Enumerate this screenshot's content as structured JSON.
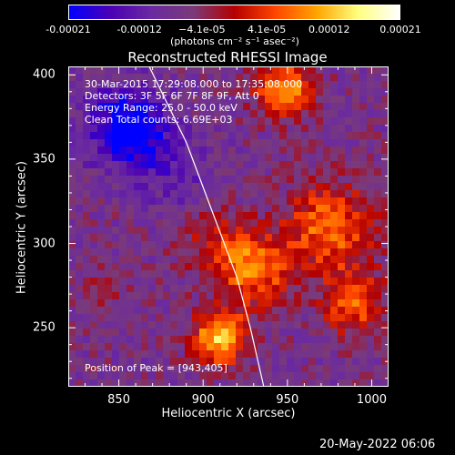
{
  "chart_data": {
    "type": "heatmap",
    "title": "Reconstructed RHESSI Image",
    "xlabel": "Heliocentric X (arcsec)",
    "ylabel": "Heliocentric Y (arcsec)",
    "xlim": [
      820,
      1010
    ],
    "ylim": [
      215,
      405
    ],
    "x_ticks": [
      850,
      900,
      950,
      1000
    ],
    "y_ticks": [
      250,
      300,
      350,
      400
    ],
    "colorbar": {
      "range": [
        -0.00021,
        0.00021
      ],
      "tick_values": [
        -0.00021,
        -0.00012,
        -4.1e-05,
        4.1e-05,
        0.00012,
        0.00021
      ],
      "tick_labels": [
        "-0.00021",
        "-0.00012",
        "−4.1e-05",
        "4.1e-05",
        "0.00012",
        "0.00021"
      ],
      "unit": "(photons cm⁻² s⁻¹ asec⁻²)",
      "colormap": [
        "#0000ff",
        "#4b00b4",
        "#6a2aa0",
        "#7a3a7a",
        "#b40000",
        "#ff4600",
        "#ffa500",
        "#ffff80",
        "#ffffff"
      ]
    },
    "annotations": [
      "30-Mar-2015 17:29:08.000 to 17:35:08.000",
      "Detectors: 3F 5F 6F 7F 8F 9F, Att 0",
      "Energy Range: 25.0 - 50.0 keV",
      "Clean    Total counts: 6.69E+03"
    ],
    "peak_label": "Position of Peak = [943,405]",
    "limb": [
      [
        868,
        405
      ],
      [
        890,
        360
      ],
      [
        905,
        320
      ],
      [
        920,
        280
      ],
      [
        928,
        250
      ],
      [
        936,
        215
      ]
    ],
    "sources": [
      {
        "x": 910,
        "y": 244,
        "amp": 0.000205,
        "sigma": 11
      },
      {
        "x": 930,
        "y": 285,
        "amp": 0.00015,
        "sigma": 15
      },
      {
        "x": 975,
        "y": 310,
        "amp": 0.00014,
        "sigma": 18
      },
      {
        "x": 990,
        "y": 265,
        "amp": 0.00012,
        "sigma": 14
      },
      {
        "x": 948,
        "y": 392,
        "amp": 0.00017,
        "sigma": 12
      },
      {
        "x": 905,
        "y": 300,
        "amp": 7e-05,
        "sigma": 14
      },
      {
        "x": 840,
        "y": 270,
        "amp": 4e-05,
        "sigma": 12
      },
      {
        "x": 855,
        "y": 370,
        "amp": -0.00017,
        "sigma": 16
      },
      {
        "x": 880,
        "y": 345,
        "amp": -5e-05,
        "sigma": 18
      }
    ]
  },
  "footer": {
    "timestamp": "20-May-2022 06:06"
  }
}
